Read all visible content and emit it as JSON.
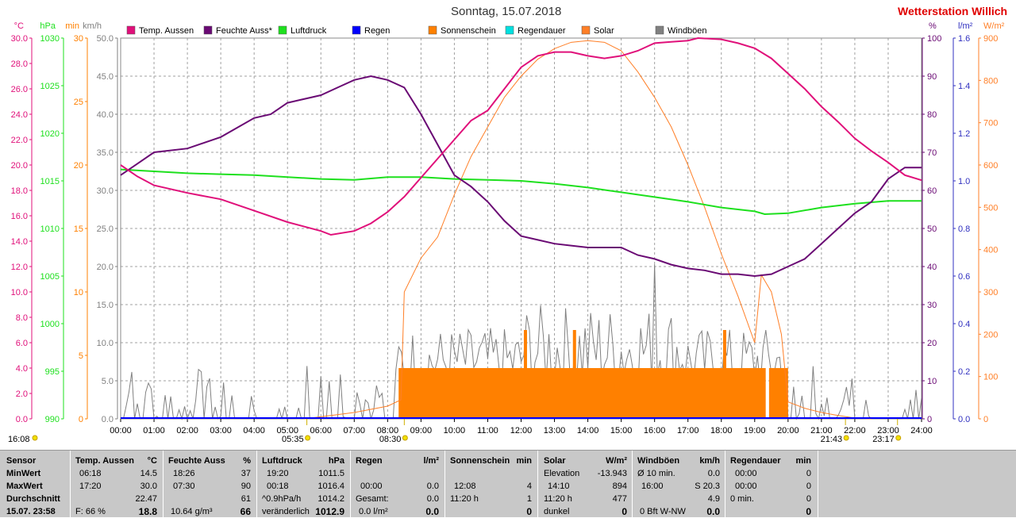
{
  "header": {
    "title": "Sonntag, 15.07.2018",
    "station": "Wetterstation Willich"
  },
  "colors": {
    "temp": "#e0107a",
    "hum": "#6a0a74",
    "press": "#1ee01e",
    "rain": "#0000ff",
    "sun": "#ff8000",
    "rainduration": "#00e0e0",
    "solar": "#ff7f27",
    "wind": "#808080",
    "grid": "#a0a0a0"
  },
  "legend": [
    {
      "label": "Temp. Aussen",
      "color": "#e0107a"
    },
    {
      "label": "Feuchte Auss*",
      "color": "#6a0a74"
    },
    {
      "label": "Luftdruck",
      "color": "#1ee01e"
    },
    {
      "label": "Regen",
      "color": "#0000ff"
    },
    {
      "label": "Sonnenschein",
      "color": "#ff8000"
    },
    {
      "label": "Regendauer",
      "color": "#00e0e0"
    },
    {
      "label": "Solar",
      "color": "#ff7f27"
    },
    {
      "label": "Windböen",
      "color": "#808080"
    }
  ],
  "chart_data": {
    "type": "line",
    "x": [
      "00:00",
      "01:00",
      "02:00",
      "03:00",
      "04:00",
      "05:00",
      "06:00",
      "07:00",
      "08:00",
      "09:00",
      "10:00",
      "11:00",
      "12:00",
      "13:00",
      "14:00",
      "15:00",
      "16:00",
      "17:00",
      "18:00",
      "19:00",
      "20:00",
      "21:00",
      "22:00",
      "23:00",
      "24:00"
    ],
    "left_axes": [
      {
        "unit": "°C",
        "color": "#e0107a",
        "ticks": [
          "30.0",
          "28.0",
          "26.0",
          "24.0",
          "22.0",
          "20.0",
          "18.0",
          "16.0",
          "14.0",
          "12.0",
          "10.0",
          "8.0",
          "6.0",
          "4.0",
          "2.0",
          "0.0"
        ]
      },
      {
        "unit": "hPa",
        "color": "#1ee01e",
        "ticks": [
          "1030",
          "1025",
          "1020",
          "1015",
          "1010",
          "1005",
          "1000",
          "995",
          "990"
        ]
      },
      {
        "unit": "min",
        "color": "#ff8000",
        "ticks": [
          "30",
          "25",
          "20",
          "15",
          "10",
          "5",
          "0"
        ]
      },
      {
        "unit": "km/h",
        "color": "#808080",
        "ticks": [
          "50.0",
          "45.0",
          "40.0",
          "35.0",
          "30.0",
          "25.0",
          "20.0",
          "15.0",
          "10.0",
          "5.0",
          "0.0"
        ]
      }
    ],
    "right_axes": [
      {
        "unit": "%",
        "color": "#6a0a74",
        "ticks": [
          "100",
          "90",
          "80",
          "70",
          "60",
          "50",
          "40",
          "30",
          "20",
          "10",
          "0"
        ]
      },
      {
        "unit": "l/m²",
        "color": "#3030c0",
        "ticks": [
          "1.6",
          "1.4",
          "1.2",
          "1.0",
          "0.8",
          "0.6",
          "0.4",
          "0.2",
          "0.0"
        ]
      },
      {
        "unit": "W/m²",
        "color": "#ff7f27",
        "ticks": [
          "900",
          "800",
          "700",
          "600",
          "500",
          "400",
          "300",
          "200",
          "100",
          "0"
        ]
      }
    ],
    "series": [
      {
        "name": "Temp. Aussen",
        "unit": "°C",
        "points": [
          [
            0,
            20.0
          ],
          [
            0.5,
            19.1
          ],
          [
            1,
            18.4
          ],
          [
            2,
            17.8
          ],
          [
            3,
            17.3
          ],
          [
            4,
            16.4
          ],
          [
            5,
            15.5
          ],
          [
            6,
            14.8
          ],
          [
            6.3,
            14.5
          ],
          [
            7,
            14.8
          ],
          [
            7.5,
            15.4
          ],
          [
            8,
            16.3
          ],
          [
            8.5,
            17.5
          ],
          [
            9,
            19.0
          ],
          [
            9.5,
            20.5
          ],
          [
            10,
            22.0
          ],
          [
            10.5,
            23.5
          ],
          [
            11,
            24.3
          ],
          [
            11.5,
            26.0
          ],
          [
            12,
            27.7
          ],
          [
            12.5,
            28.6
          ],
          [
            13,
            28.9
          ],
          [
            13.5,
            28.9
          ],
          [
            14,
            28.6
          ],
          [
            14.5,
            28.4
          ],
          [
            15,
            28.6
          ],
          [
            15.5,
            29.0
          ],
          [
            16,
            29.6
          ],
          [
            16.5,
            29.7
          ],
          [
            17,
            29.8
          ],
          [
            17.3,
            30.0
          ],
          [
            18,
            29.9
          ],
          [
            18.5,
            29.6
          ],
          [
            19,
            29.2
          ],
          [
            19.5,
            28.4
          ],
          [
            20,
            27.2
          ],
          [
            20.5,
            26.0
          ],
          [
            21,
            24.6
          ],
          [
            21.5,
            23.4
          ],
          [
            22,
            22.1
          ],
          [
            22.5,
            21.1
          ],
          [
            23,
            20.2
          ],
          [
            23.5,
            19.2
          ],
          [
            24,
            18.8
          ]
        ]
      },
      {
        "name": "Feuchte Auss*",
        "unit": "%",
        "points": [
          [
            0,
            64
          ],
          [
            0.5,
            67
          ],
          [
            1,
            70
          ],
          [
            2,
            71
          ],
          [
            3,
            74
          ],
          [
            4,
            79
          ],
          [
            4.5,
            80
          ],
          [
            5,
            83
          ],
          [
            6,
            85
          ],
          [
            6.5,
            87
          ],
          [
            7,
            89
          ],
          [
            7.5,
            90
          ],
          [
            8,
            89
          ],
          [
            8.5,
            87
          ],
          [
            9,
            80
          ],
          [
            9.5,
            72
          ],
          [
            10,
            64
          ],
          [
            10.5,
            61
          ],
          [
            11,
            57
          ],
          [
            11.5,
            52
          ],
          [
            12,
            48
          ],
          [
            12.5,
            47
          ],
          [
            13,
            46
          ],
          [
            13.5,
            45.5
          ],
          [
            14,
            45
          ],
          [
            14.5,
            45
          ],
          [
            15,
            45
          ],
          [
            15.5,
            43
          ],
          [
            16,
            42
          ],
          [
            16.5,
            40.5
          ],
          [
            17,
            39.5
          ],
          [
            17.5,
            39
          ],
          [
            18,
            38
          ],
          [
            18.5,
            38
          ],
          [
            19,
            37.5
          ],
          [
            19.5,
            38
          ],
          [
            20,
            40
          ],
          [
            20.5,
            42
          ],
          [
            21,
            46
          ],
          [
            21.5,
            50
          ],
          [
            22,
            54
          ],
          [
            22.5,
            57
          ],
          [
            23,
            63
          ],
          [
            23.5,
            66
          ],
          [
            24,
            66
          ]
        ]
      },
      {
        "name": "Luftdruck",
        "unit": "hPa",
        "points": [
          [
            0,
            1016.2
          ],
          [
            1,
            1016.0
          ],
          [
            2,
            1015.8
          ],
          [
            3,
            1015.7
          ],
          [
            4,
            1015.6
          ],
          [
            5,
            1015.4
          ],
          [
            6,
            1015.2
          ],
          [
            7,
            1015.1
          ],
          [
            8,
            1015.4
          ],
          [
            9,
            1015.4
          ],
          [
            10,
            1015.2
          ],
          [
            11,
            1015.1
          ],
          [
            12,
            1015.0
          ],
          [
            13,
            1014.7
          ],
          [
            14,
            1014.3
          ],
          [
            15,
            1013.8
          ],
          [
            16,
            1013.3
          ],
          [
            17,
            1012.8
          ],
          [
            18,
            1012.2
          ],
          [
            19,
            1011.8
          ],
          [
            19.3,
            1011.5
          ],
          [
            20,
            1011.6
          ],
          [
            21,
            1012.2
          ],
          [
            22,
            1012.6
          ],
          [
            23,
            1012.9
          ],
          [
            24,
            1012.9
          ]
        ]
      },
      {
        "name": "Solar",
        "unit": "W/m²",
        "points": [
          [
            5.5,
            0
          ],
          [
            6,
            5
          ],
          [
            7,
            15
          ],
          [
            8,
            30
          ],
          [
            8.4,
            45
          ],
          [
            8.5,
            300
          ],
          [
            9,
            380
          ],
          [
            9.5,
            430
          ],
          [
            10,
            530
          ],
          [
            10.5,
            620
          ],
          [
            11,
            690
          ],
          [
            11.5,
            760
          ],
          [
            12,
            810
          ],
          [
            12.5,
            850
          ],
          [
            13,
            875
          ],
          [
            13.5,
            890
          ],
          [
            14,
            894
          ],
          [
            14.5,
            890
          ],
          [
            15,
            870
          ],
          [
            15.5,
            820
          ],
          [
            16,
            760
          ],
          [
            16.5,
            690
          ],
          [
            17,
            600
          ],
          [
            17.5,
            500
          ],
          [
            18,
            390
          ],
          [
            18.5,
            290
          ],
          [
            19,
            180
          ],
          [
            19.2,
            340
          ],
          [
            19.5,
            300
          ],
          [
            19.8,
            200
          ],
          [
            20,
            40
          ],
          [
            20.5,
            25
          ],
          [
            21,
            15
          ],
          [
            21.5,
            8
          ],
          [
            22,
            2
          ],
          [
            22.5,
            0
          ]
        ]
      },
      {
        "name": "Sonnenschein",
        "unit": "min",
        "blocks": [
          [
            8.33,
            19.33,
            4
          ],
          [
            19.43,
            20.0,
            4
          ]
        ],
        "spikes": [
          [
            12.13,
            7
          ],
          [
            13.6,
            7
          ],
          [
            18.1,
            7
          ]
        ]
      },
      {
        "name": "Windböen",
        "unit": "km/h",
        "max": 20.3,
        "max_time": "16:00"
      },
      {
        "name": "Regen",
        "unit": "l/m²",
        "total": 0.0
      }
    ],
    "events_below_axis": [
      {
        "time": "16:08",
        "x": -0.05,
        "row": 2
      },
      {
        "time": "05:35",
        "x": 5.58,
        "row": 2
      },
      {
        "time": "08:30",
        "x": 8.5,
        "row": 2
      },
      {
        "time": "21:43",
        "x": 21.72,
        "row": 2
      },
      {
        "time": "23:17",
        "x": 23.28,
        "row": 2
      }
    ]
  },
  "table": {
    "rows": [
      "Sensor",
      "MinWert",
      "MaxWert",
      "Durchschnitt",
      "15.07. 23:58"
    ],
    "temp": {
      "head": "Temp. Aussen",
      "unit": "°C",
      "min_t": "06:18",
      "min": "14.5",
      "max_t": "17:20",
      "max": "30.0",
      "avg": "22.47",
      "cur_l": "F: 66 %",
      "cur": "18.8"
    },
    "hum": {
      "head": "Feuchte Auss",
      "unit": "%",
      "min_t": "18:26",
      "min": "37",
      "max_t": "07:30",
      "max": "90",
      "avg": "61",
      "cur_l": "10.64 g/m³",
      "cur": "66"
    },
    "press": {
      "head": "Luftdruck",
      "unit": "hPa",
      "min_t": "19:20",
      "min": "1011.5",
      "max_t": "00:18",
      "max": "1016.4",
      "avg_l": "^0.9hPa/h",
      "avg": "1014.2",
      "cur_l": "veränderlich",
      "cur": "1012.9"
    },
    "rain": {
      "head": "Regen",
      "unit": "l/m²",
      "r2_l": "00:00",
      "r2": "0.0",
      "r3_l": "Gesamt:",
      "r3": "0.0",
      "cur_l": "0.0 l/m²",
      "cur": "0.0"
    },
    "sun": {
      "head": "Sonnenschein",
      "unit": "min",
      "r2_l": "12:08",
      "r2": "4",
      "r3_l": "11:20 h",
      "r3": "1",
      "cur": "0"
    },
    "solar": {
      "head": "Solar",
      "unit": "W/m²",
      "r1_l": "Elevation",
      "r1": "-13.943",
      "r2_l": "14:10",
      "r2": "894",
      "r3_l": "11:20 h",
      "r3": "477",
      "cur_l": "dunkel",
      "cur": "0"
    },
    "wind": {
      "head": "Windböen",
      "unit": "km/h",
      "r1_l": "Ø 10 min.",
      "r1": "0.0",
      "r2_l": "16:00",
      "r2": "S 20.3",
      "r3": "4.9",
      "cur_l": "0 Bft W-NW",
      "cur": "0.0"
    },
    "rdur": {
      "head": "Regendauer",
      "unit": "min",
      "r1_l": "00:00",
      "r1": "0",
      "r2_l": "00:00",
      "r2": "0",
      "r3_l": "0 min.",
      "r3": "0",
      "cur": "0"
    }
  }
}
